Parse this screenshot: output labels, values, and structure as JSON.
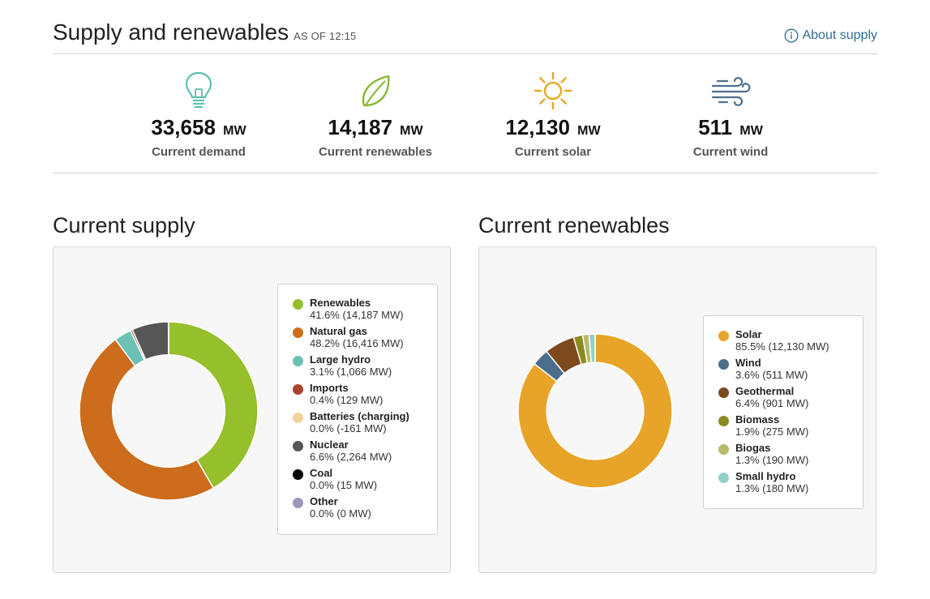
{
  "header": {
    "title": "Supply and renewables",
    "as_of": "AS OF 12:15",
    "about_link": "About supply",
    "about_icon": "info-icon"
  },
  "stats": [
    {
      "icon": "lightbulb-icon",
      "value": "33,658",
      "unit": "MW",
      "label": "Current demand",
      "color": "#5cc0ad"
    },
    {
      "icon": "leaf-icon",
      "value": "14,187",
      "unit": "MW",
      "label": "Current renewables",
      "color": "#8ab833"
    },
    {
      "icon": "sun-icon",
      "value": "12,130",
      "unit": "MW",
      "label": "Current solar",
      "color": "#e8a726"
    },
    {
      "icon": "wind-icon",
      "value": "511",
      "unit": "MW",
      "label": "Current wind",
      "color": "#4e6e8e"
    }
  ],
  "supply": {
    "title": "Current supply"
  },
  "renewables": {
    "title": "Current renewables"
  },
  "chart_data": [
    {
      "type": "pie",
      "donut": true,
      "title": "Current supply",
      "legend_position": "right",
      "categories": [
        "Renewables",
        "Natural gas",
        "Large hydro",
        "Imports",
        "Batteries (charging)",
        "Nuclear",
        "Coal",
        "Other"
      ],
      "values": [
        14187,
        16416,
        1066,
        129,
        -161,
        2264,
        15,
        0
      ],
      "percentages": [
        41.6,
        48.2,
        3.1,
        0.4,
        0.0,
        6.6,
        0.0,
        0.0
      ],
      "legend_values": [
        "41.6% (14,187 MW)",
        "48.2% (16,416 MW)",
        "3.1% (1,066 MW)",
        "0.4% (129 MW)",
        "0.0% (-161 MW)",
        "6.6% (2,264 MW)",
        "0.0% (15 MW)",
        "0.0% (0 MW)"
      ],
      "colors": [
        "#95bf2b",
        "#cc6c1c",
        "#6cc1b5",
        "#a8432c",
        "#f2d49a",
        "#565656",
        "#000000",
        "#9d96be"
      ],
      "units": "MW"
    },
    {
      "type": "pie",
      "donut": true,
      "title": "Current renewables",
      "legend_position": "right",
      "categories": [
        "Solar",
        "Wind",
        "Geothermal",
        "Biomass",
        "Biogas",
        "Small hydro"
      ],
      "values": [
        12130,
        511,
        901,
        275,
        190,
        180
      ],
      "percentages": [
        85.5,
        3.6,
        6.4,
        1.9,
        1.3,
        1.3
      ],
      "legend_values": [
        "85.5% (12,130 MW)",
        "3.6% (511 MW)",
        "6.4% (901 MW)",
        "1.9% (275 MW)",
        "1.3% (190 MW)",
        "1.3% (180 MW)"
      ],
      "colors": [
        "#e8a428",
        "#4a6e8c",
        "#7d4a1e",
        "#8a8a1f",
        "#b9b96c",
        "#94d0ca"
      ],
      "units": "MW"
    }
  ]
}
